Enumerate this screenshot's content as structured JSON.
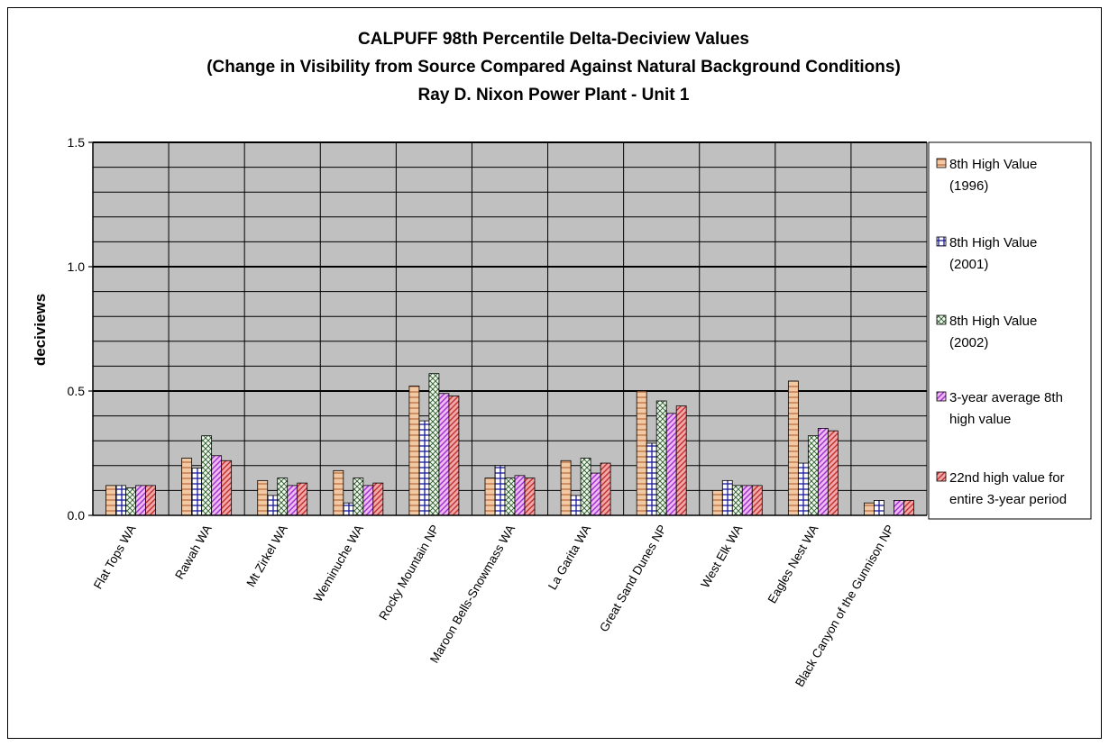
{
  "chart_data": {
    "type": "bar",
    "title": "CALPUFF 98th Percentile Delta-Deciview Values",
    "subtitle": "(Change in Visibility from Source Compared Against Natural Background Conditions)",
    "title_line3": "Ray D. Nixon Power Plant - Unit 1",
    "xlabel": "",
    "ylabel": "deciviews",
    "ylim": [
      0,
      1.5
    ],
    "y_ticks": [
      "0.0",
      "0.5",
      "1.0",
      "1.5"
    ],
    "grid": true,
    "legend_position": "right",
    "categories": [
      "Flat Tops WA",
      "Rawah WA",
      "Mt Zirkel WA",
      "Weminuche WA",
      "Rocky Mountain NP",
      "Maroon Bells-Snowmass WA",
      "La Garita WA",
      "Great Sand Dunes NP",
      "West Elk WA",
      "Eagles Nest WA",
      "Black Canyon of the Gunnison NP"
    ],
    "series": [
      {
        "name": "8th High Value (1996)",
        "color": "#f2c9a3",
        "stroke": "#b8683a",
        "pattern": "hlines",
        "values": [
          0.12,
          0.23,
          0.14,
          0.18,
          0.52,
          0.15,
          0.22,
          0.5,
          0.1,
          0.54,
          0.05
        ]
      },
      {
        "name": "8th High Value (2001)",
        "color": "#ffffff",
        "stroke": "#1a1a99",
        "pattern": "grid",
        "values": [
          0.12,
          0.19,
          0.08,
          0.05,
          0.38,
          0.2,
          0.08,
          0.29,
          0.14,
          0.21,
          0.06
        ]
      },
      {
        "name": "8th High Value (2002)",
        "color": "#f0f7ec",
        "stroke": "#2d5a2d",
        "pattern": "cross",
        "values": [
          0.11,
          0.32,
          0.15,
          0.15,
          0.57,
          0.15,
          0.23,
          0.46,
          0.12,
          0.32,
          0.0
        ]
      },
      {
        "name": "3-year average 8th high value",
        "color": "#f2b8f2",
        "stroke": "#9933cc",
        "pattern": "diag",
        "values": [
          0.12,
          0.24,
          0.12,
          0.12,
          0.49,
          0.16,
          0.17,
          0.41,
          0.12,
          0.35,
          0.06
        ]
      },
      {
        "name": "22nd high value for entire 3-year period",
        "color": "#f2a8a8",
        "stroke": "#c03030",
        "pattern": "diag",
        "values": [
          0.12,
          0.22,
          0.13,
          0.13,
          0.48,
          0.15,
          0.21,
          0.44,
          0.12,
          0.34,
          0.06
        ]
      }
    ],
    "legend_lines": [
      [
        "8th High Value",
        "(1996)"
      ],
      [
        "8th High Value",
        "(2001)"
      ],
      [
        "8th High Value",
        "(2002)"
      ],
      [
        "3-year average 8th",
        "high value"
      ],
      [
        "22nd high value for",
        "entire 3-year period"
      ]
    ],
    "plot_background": "#c0c0c0"
  }
}
